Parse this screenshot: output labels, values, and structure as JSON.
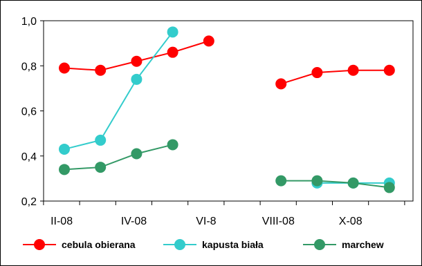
{
  "chart_data": {
    "type": "line",
    "title": "",
    "xlabel": "",
    "ylabel": "",
    "ylim": [
      0.2,
      1.0
    ],
    "yticks": [
      "0,2",
      "0,4",
      "0,6",
      "0,8",
      "1,0"
    ],
    "ytick_values": [
      0.2,
      0.4,
      0.6,
      0.8,
      1.0
    ],
    "x_positions": 11,
    "xticks": [
      {
        "label": "II-08",
        "pos": 0
      },
      {
        "label": "IV-08",
        "pos": 2
      },
      {
        "label": "VI-8",
        "pos": 4
      },
      {
        "label": "VIII-08",
        "pos": 6
      },
      {
        "label": "X-08",
        "pos": 8
      }
    ],
    "grid": false,
    "legend_position": "bottom",
    "series": [
      {
        "name": "cebula obierana",
        "color": "#ff0000",
        "line_color": "#ff0000",
        "values": [
          0.79,
          0.78,
          0.82,
          0.86,
          0.91,
          null,
          0.72,
          0.77,
          0.78,
          0.78
        ]
      },
      {
        "name": "kapusta biała",
        "color": "#33cccc",
        "line_color": "#33cccc",
        "values": [
          0.43,
          0.47,
          0.74,
          0.95,
          null,
          null,
          null,
          0.28,
          0.28,
          0.28
        ]
      },
      {
        "name": "marchew",
        "color": "#339966",
        "line_color": "#339966",
        "values": [
          0.34,
          0.35,
          0.41,
          0.45,
          null,
          null,
          0.29,
          0.29,
          0.28,
          0.26
        ]
      }
    ]
  }
}
